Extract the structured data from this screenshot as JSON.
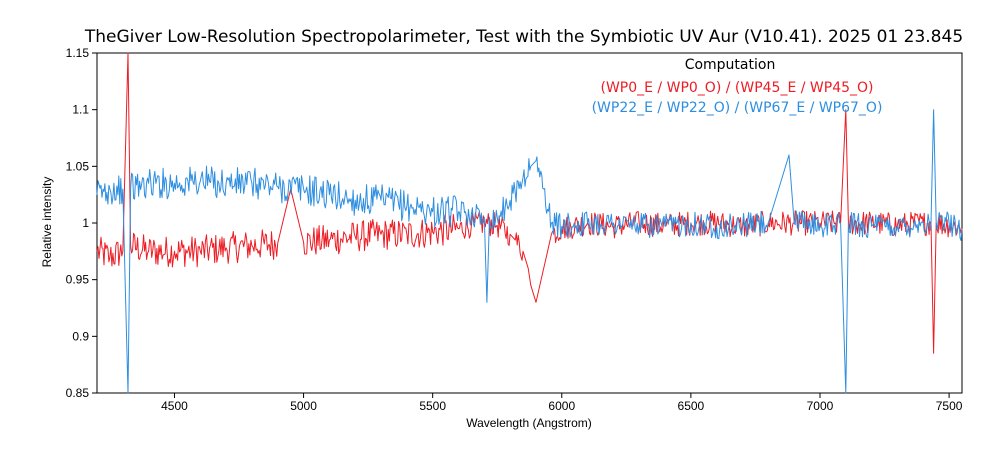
{
  "chart_data": {
    "type": "line",
    "title": "TheGiver Low-Resolution Spectropolarimeter,  Test with the Symbiotic UV Aur  (V10.41).  2025 01 23.845",
    "xlabel": "Wavelength (Angstrom)",
    "ylabel": "Relative intensity",
    "xlim": [
      4200,
      7550
    ],
    "ylim": [
      0.85,
      1.15
    ],
    "x_ticks": [
      4500,
      5000,
      5500,
      6000,
      6500,
      7000,
      7500
    ],
    "y_ticks": [
      0.85,
      0.9,
      0.95,
      1,
      1.05,
      1.1,
      1.15
    ],
    "x_tick_labels": [
      "4500",
      "5000",
      "5500",
      "6000",
      "6500",
      "7000",
      "7500"
    ],
    "y_tick_labels": [
      "0.85",
      "0.9",
      "0.95",
      "1",
      "1.05",
      "1.1",
      "1.15"
    ],
    "legend": {
      "title": "Computation",
      "placement": "top-right",
      "entries": [
        "(WP0_E / WP0_O) / (WP45_E  / WP45_O)",
        "(WP22_E / WP22_O) / (WP67_E  / WP67_O)"
      ]
    },
    "series": [
      {
        "name": "(WP0_E / WP0_O) / (WP45_E  / WP45_O)",
        "color": "#ee1c24",
        "x": [
          4200,
          4250,
          4300,
          4320,
          4330,
          4400,
          4500,
          4600,
          4700,
          4800,
          4900,
          4950,
          5000,
          5100,
          5200,
          5300,
          5400,
          5500,
          5600,
          5650,
          5700,
          5750,
          5800,
          5820,
          5850,
          5870,
          5880,
          5900,
          5920,
          5940,
          5960,
          6000,
          6100,
          6200,
          6300,
          6400,
          6500,
          6600,
          6700,
          6800,
          6900,
          7000,
          7080,
          7100,
          7110,
          7200,
          7300,
          7400,
          7430,
          7440,
          7450,
          7500,
          7550
        ],
        "y": [
          0.975,
          0.97,
          0.975,
          1.15,
          0.98,
          0.975,
          0.975,
          0.975,
          0.978,
          0.98,
          0.982,
          1.03,
          0.983,
          0.985,
          0.988,
          0.99,
          0.99,
          0.992,
          0.995,
          0.998,
          1.0,
          0.998,
          0.99,
          0.985,
          0.975,
          0.96,
          0.945,
          0.93,
          0.95,
          0.97,
          0.99,
          0.995,
          1.0,
          0.997,
          1.0,
          0.998,
          1.0,
          1.0,
          0.997,
          1.0,
          1.0,
          1.0,
          1.0,
          1.1,
          1.0,
          1.0,
          0.998,
          1.0,
          1.0,
          0.885,
          1.0,
          0.998,
          0.995
        ]
      },
      {
        "name": "(WP22_E / WP22_O) / (WP67_E  / WP67_O)",
        "color": "#2e8ee0",
        "x": [
          4200,
          4250,
          4300,
          4320,
          4330,
          4400,
          4500,
          4600,
          4700,
          4800,
          4900,
          5000,
          5100,
          5200,
          5300,
          5400,
          5500,
          5600,
          5650,
          5700,
          5710,
          5720,
          5750,
          5800,
          5850,
          5880,
          5900,
          5930,
          5960,
          6000,
          6100,
          6200,
          6300,
          6400,
          6500,
          6600,
          6700,
          6800,
          6880,
          6900,
          7000,
          7080,
          7100,
          7110,
          7200,
          7300,
          7400,
          7430,
          7440,
          7450,
          7500,
          7550
        ],
        "y": [
          1.025,
          1.03,
          1.03,
          0.85,
          1.03,
          1.035,
          1.035,
          1.037,
          1.035,
          1.035,
          1.032,
          1.03,
          1.025,
          1.02,
          1.02,
          1.015,
          1.01,
          1.01,
          1.008,
          1.005,
          0.93,
          1.005,
          1.005,
          1.02,
          1.04,
          1.05,
          1.055,
          1.03,
          1.0,
          0.997,
          1.0,
          1.0,
          0.998,
          0.997,
          1.0,
          0.997,
          0.998,
          1.0,
          1.06,
          1.0,
          0.998,
          1.0,
          0.85,
          1.0,
          0.997,
          0.997,
          1.0,
          1.0,
          1.1,
          1.0,
          1.0,
          0.995
        ]
      }
    ]
  }
}
